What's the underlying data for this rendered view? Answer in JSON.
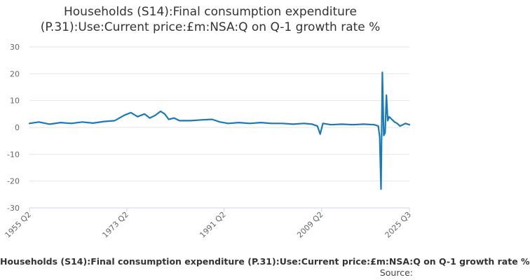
{
  "chart_data": {
    "type": "line",
    "title_lines": [
      "Households (S14):Final consumption expenditure",
      "(P.31):Use:Current price:£m:NSA:Q on Q-1 growth rate %"
    ],
    "series": [
      {
        "name": "Households (S14):Final consumption expenditure (P.31):Use:Current price:£m:NSA:Q on Q-1 growth rate %",
        "color": "#1a7ab9",
        "x": [
          "1955 Q2",
          "1957 Q1",
          "1959 Q1",
          "1961 Q1",
          "1963 Q1",
          "1965 Q1",
          "1967 Q1",
          "1969 Q1",
          "1971 Q1",
          "1972 Q4",
          "1974 Q1",
          "1975 Q2",
          "1976 Q3",
          "1977 Q3",
          "1978 Q3",
          "1979 Q3",
          "1980 Q2",
          "1981 Q1",
          "1982 Q1",
          "1983 Q1",
          "1985 Q1",
          "1987 Q1",
          "1989 Q1",
          "1990 Q3",
          "1992 Q1",
          "1994 Q1",
          "1996 Q1",
          "1998 Q1",
          "2000 Q1",
          "2002 Q1",
          "2004 Q1",
          "2006 Q1",
          "2007 Q3",
          "2008 Q3",
          "2009 Q1",
          "2009 Q3",
          "2011 Q1",
          "2013 Q1",
          "2015 Q1",
          "2017 Q1",
          "2019 Q1",
          "2019 Q4",
          "2020 Q1",
          "2020 Q2",
          "2020 Q3",
          "2020 Q4",
          "2021 Q1",
          "2021 Q2",
          "2021 Q3",
          "2021 Q4",
          "2022 Q2",
          "2022 Q4",
          "2023 Q2",
          "2023 Q4",
          "2024 Q2",
          "2024 Q4",
          "2025 Q3"
        ],
        "values": [
          1.5,
          2.0,
          1.2,
          1.8,
          1.5,
          2.0,
          1.6,
          2.2,
          2.5,
          4.5,
          5.5,
          4.0,
          5.0,
          3.5,
          4.5,
          6.0,
          5.0,
          3.0,
          3.5,
          2.5,
          2.5,
          2.8,
          3.0,
          2.0,
          1.5,
          1.8,
          1.5,
          1.8,
          1.5,
          1.5,
          1.2,
          1.5,
          1.2,
          0.5,
          -2.5,
          1.5,
          1.0,
          1.2,
          1.0,
          1.2,
          1.0,
          0.5,
          -3.5,
          -23.0,
          20.5,
          -3.0,
          -2.0,
          12.0,
          2.5,
          4.0,
          3.0,
          2.0,
          1.5,
          0.5,
          1.0,
          1.5,
          1.0
        ]
      }
    ],
    "yticks": [
      30,
      20,
      10,
      0,
      -10,
      -20,
      -30
    ],
    "ylim": [
      -30,
      30
    ],
    "xticks": [
      "1955 Q2",
      "1973 Q2",
      "1991 Q2",
      "2009 Q2",
      "2025 Q3"
    ],
    "grid": true,
    "source_label": "Source:"
  }
}
